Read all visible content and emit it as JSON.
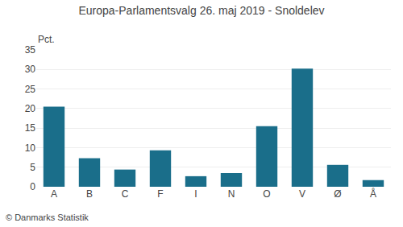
{
  "chart_data": {
    "type": "bar",
    "title": "Europa-Parlamentsvalg 26. maj 2019 - Snoldelev",
    "categories": [
      "A",
      "B",
      "C",
      "F",
      "I",
      "N",
      "O",
      "V",
      "Ø",
      "Å"
    ],
    "values": [
      20.5,
      7.3,
      4.4,
      9.3,
      2.7,
      3.5,
      15.5,
      30.2,
      5.6,
      1.7
    ],
    "color": "#1a6e8a",
    "ylabel": "Pct.",
    "ylim": [
      0,
      35
    ],
    "yticks": [
      0,
      5,
      10,
      15,
      20,
      25,
      30,
      35
    ],
    "grid": true,
    "annotations": [
      "© Danmarks Statistik"
    ]
  }
}
